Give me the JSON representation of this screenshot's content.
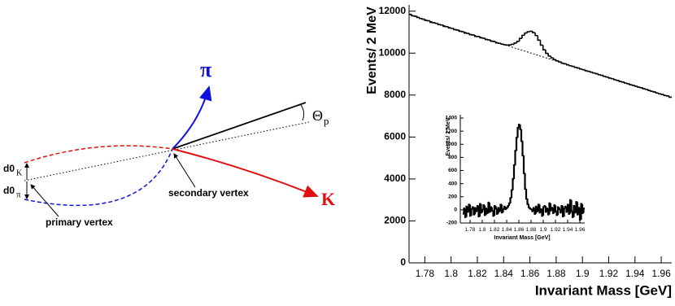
{
  "diagram": {
    "pi_label": "π",
    "k_label": "K",
    "theta": "Θ",
    "theta_sub": "p",
    "d0_k": "d0",
    "d0_k_sub": "K",
    "d0_pi": "d0",
    "d0_pi_sub": "π",
    "secondary_vertex": "secondary vertex",
    "primary_vertex": "primary vertex"
  },
  "chart_data": [
    {
      "type": "histogram",
      "x_label": "Invariant Mass [GeV]",
      "y_label": "Events/ 2 MeV",
      "color": "#000000",
      "bins": [
        1.768,
        1.77,
        1.772,
        1.774,
        1.776,
        1.778,
        1.78,
        1.782,
        1.784,
        1.786,
        1.788,
        1.79,
        1.792,
        1.794,
        1.796,
        1.798,
        1.8,
        1.802,
        1.804,
        1.806,
        1.808,
        1.81,
        1.812,
        1.814,
        1.816,
        1.818,
        1.82,
        1.822,
        1.824,
        1.826,
        1.828,
        1.83,
        1.832,
        1.834,
        1.836,
        1.838,
        1.84,
        1.842,
        1.844,
        1.846,
        1.848,
        1.85,
        1.852,
        1.854,
        1.856,
        1.858,
        1.86,
        1.862,
        1.864,
        1.866,
        1.868,
        1.87,
        1.872,
        1.874,
        1.876,
        1.878,
        1.88,
        1.882,
        1.884,
        1.886,
        1.888,
        1.89,
        1.892,
        1.894,
        1.896,
        1.898,
        1.9,
        1.902,
        1.904,
        1.906,
        1.908,
        1.91,
        1.912,
        1.914,
        1.916,
        1.918,
        1.92,
        1.922,
        1.924,
        1.926,
        1.928,
        1.93,
        1.932,
        1.934,
        1.936,
        1.938,
        1.94,
        1.942,
        1.944,
        1.946,
        1.948,
        1.95,
        1.952,
        1.954,
        1.956,
        1.958,
        1.96,
        1.962,
        1.964,
        1.966,
        1.968
      ],
      "values": [
        11850,
        11780,
        11760,
        11700,
        11650,
        11620,
        11560,
        11540,
        11470,
        11450,
        11420,
        11360,
        11340,
        11280,
        11260,
        11200,
        11180,
        11120,
        11100,
        11040,
        11020,
        10960,
        10940,
        10880,
        10860,
        10800,
        10790,
        10730,
        10710,
        10650,
        10630,
        10570,
        10550,
        10490,
        10470,
        10430,
        10400,
        10380,
        10390,
        10420,
        10480,
        10560,
        10700,
        10850,
        10960,
        11020,
        11040,
        10980,
        10840,
        10620,
        10380,
        10160,
        9990,
        9860,
        9770,
        9690,
        9630,
        9580,
        9520,
        9490,
        9440,
        9400,
        9370,
        9320,
        9290,
        9240,
        9210,
        9160,
        9130,
        9090,
        9050,
        9020,
        8970,
        8940,
        8890,
        8860,
        8810,
        8780,
        8730,
        8700,
        8650,
        8620,
        8570,
        8540,
        8490,
        8460,
        8420,
        8380,
        8350,
        8300,
        8270,
        8220,
        8180,
        8150,
        8100,
        8060,
        8030,
        7980,
        7960,
        7900
      ],
      "fit": {
        "x": [
          1.768,
          1.968
        ],
        "values": [
          11840,
          7880
        ]
      },
      "xlim": [
        1.768,
        1.968
      ],
      "ylim": [
        0,
        12300
      ],
      "xticks": [
        1.78,
        1.8,
        1.82,
        1.84,
        1.86,
        1.88,
        1.9,
        1.92,
        1.94,
        1.96
      ],
      "yticks": [
        0,
        2000,
        4000,
        6000,
        8000,
        10000,
        12000
      ]
    },
    {
      "type": "histogram",
      "x_label": "Invariant Mass [GeV]",
      "y_label": "Events/ 2 MeV",
      "color": "#000000",
      "bins": [
        1.768,
        1.77,
        1.772,
        1.774,
        1.776,
        1.778,
        1.78,
        1.782,
        1.784,
        1.786,
        1.788,
        1.79,
        1.792,
        1.794,
        1.796,
        1.798,
        1.8,
        1.802,
        1.804,
        1.806,
        1.808,
        1.81,
        1.812,
        1.814,
        1.816,
        1.818,
        1.82,
        1.822,
        1.824,
        1.826,
        1.828,
        1.83,
        1.832,
        1.834,
        1.836,
        1.838,
        1.84,
        1.842,
        1.844,
        1.846,
        1.848,
        1.85,
        1.852,
        1.854,
        1.856,
        1.858,
        1.86,
        1.862,
        1.864,
        1.866,
        1.868,
        1.87,
        1.872,
        1.874,
        1.876,
        1.878,
        1.88,
        1.882,
        1.884,
        1.886,
        1.888,
        1.89,
        1.892,
        1.894,
        1.896,
        1.898,
        1.9,
        1.902,
        1.904,
        1.906,
        1.908,
        1.91,
        1.912,
        1.914,
        1.916,
        1.918,
        1.92,
        1.922,
        1.924,
        1.926,
        1.928,
        1.93,
        1.932,
        1.934,
        1.936,
        1.938,
        1.94,
        1.942,
        1.944,
        1.946,
        1.948,
        1.95,
        1.952,
        1.954,
        1.956,
        1.958,
        1.96,
        1.962,
        1.964,
        1.966,
        1.968
      ],
      "values": [
        -60,
        20,
        -110,
        50,
        -30,
        80,
        -90,
        10,
        40,
        -70,
        30,
        -20,
        60,
        -100,
        90,
        -40,
        0,
        70,
        -80,
        20,
        -50,
        110,
        -30,
        40,
        -10,
        -90,
        60,
        20,
        -60,
        30,
        -20,
        80,
        -40,
        10,
        50,
        10,
        30,
        60,
        100,
        180,
        300,
        470,
        680,
        900,
        1100,
        1250,
        1300,
        1230,
        1050,
        830,
        560,
        320,
        170,
        90,
        40,
        20,
        10,
        -20,
        30,
        -60,
        50,
        -20,
        80,
        -40,
        10,
        -90,
        40,
        60,
        -30,
        20,
        -70,
        100,
        -10,
        30,
        -50,
        70,
        -20,
        -80,
        40,
        10,
        -40,
        60,
        -100,
        20,
        50,
        -30,
        80,
        -60,
        150,
        -20,
        -110,
        60,
        -40,
        120,
        -70,
        30,
        -150,
        90,
        -50,
        20
      ],
      "xlim": [
        1.764,
        1.968
      ],
      "ylim": [
        -200,
        1450
      ],
      "xticks": [
        1.78,
        1.8,
        1.82,
        1.84,
        1.86,
        1.88,
        1.9,
        1.92,
        1.94,
        1.96
      ],
      "yticks": [
        -200,
        0,
        200,
        400,
        600,
        800,
        1000,
        1200,
        1400
      ]
    }
  ]
}
